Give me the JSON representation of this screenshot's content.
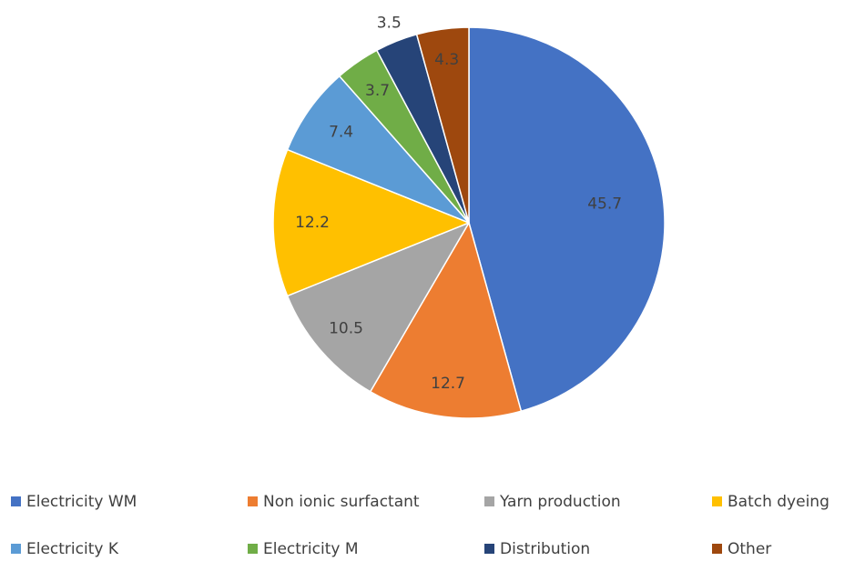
{
  "chart_data": {
    "type": "pie",
    "title": "",
    "start_angle_deg": 0,
    "direction": "clockwise",
    "legend_position": "bottom",
    "data_labels": "inside-slices",
    "slices": [
      {
        "label": "Electricity WM",
        "value": 45.7,
        "display": "45.7",
        "color": "#4472C4"
      },
      {
        "label": "Non ionic surfactant",
        "value": 12.7,
        "display": "12.7",
        "color": "#ED7D31"
      },
      {
        "label": "Yarn production",
        "value": 10.5,
        "display": "10.5",
        "color": "#A5A5A5"
      },
      {
        "label": "Batch dyeing",
        "value": 12.2,
        "display": "12.2",
        "color": "#FFC000"
      },
      {
        "label": "Electricity K",
        "value": 7.4,
        "display": "7.4",
        "color": "#5B9BD5"
      },
      {
        "label": "Electricity M",
        "value": 3.7,
        "display": "3.7",
        "color": "#70AD47"
      },
      {
        "label": "Distribution",
        "value": 3.5,
        "display": "3.5",
        "color": "#264478"
      },
      {
        "label": "Other",
        "value": 4.3,
        "display": "4.3",
        "color": "#9E480E"
      }
    ]
  }
}
